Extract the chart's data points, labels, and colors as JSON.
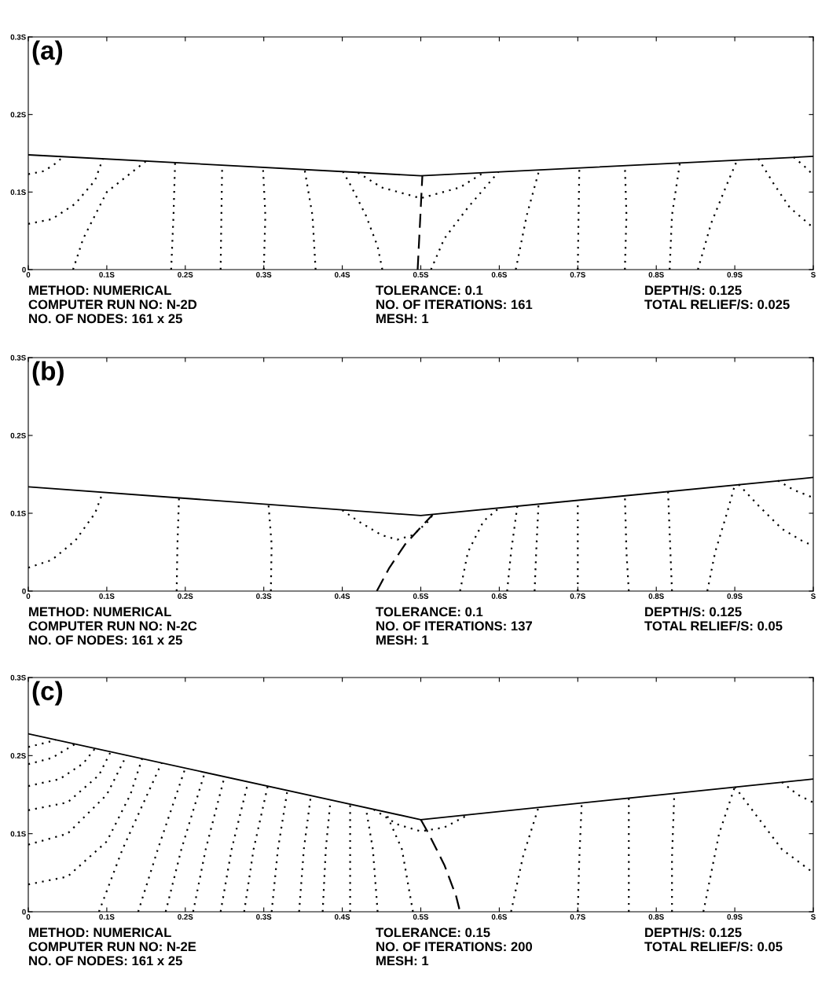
{
  "chart_data": [
    {
      "type": "line",
      "title": "(a)",
      "xlim": [
        0,
        1
      ],
      "ylim": [
        0,
        0.3
      ],
      "xticks": [
        0,
        {
          "value": 0.1,
          "label": "0.1S"
        },
        {
          "value": 0.2,
          "label": "0.2S"
        },
        {
          "value": 0.3,
          "label": "0.3S"
        },
        {
          "value": 0.4,
          "label": "0.4S"
        },
        {
          "value": 0.5,
          "label": "0.5S"
        },
        {
          "value": 0.6,
          "label": "0.6S"
        },
        {
          "value": 0.7,
          "label": "0.7S"
        },
        {
          "value": 0.8,
          "label": "0.8S"
        },
        {
          "value": 0.9,
          "label": "0.9S"
        },
        {
          "value": 1,
          "label": "S"
        }
      ],
      "yticks": [
        0,
        {
          "value": 0.1,
          "label": "0.1S"
        },
        {
          "value": 0.2,
          "label": "0.2S"
        },
        {
          "value": 0.3,
          "label": "0.3S"
        }
      ],
      "annotations": [
        "METHOD: NUMERICAL",
        "COMPUTER RUN NO: N-2D",
        "NO. OF NODES: 161 x 25",
        "TOLERANCE: 0.1",
        "NO. OF ITERATIONS: 161",
        "MESH: 1",
        "DEPTH/S: 0.125",
        "TOTAL RELIEF/S: 0.025"
      ],
      "series": [
        {
          "color": "#000000",
          "line_style": "solid",
          "x": [
            0,
            0.5,
            1
          ],
          "values": [
            0.148,
            0.121,
            0.146
          ]
        },
        {
          "color": "#000000",
          "line_style": "dashed",
          "x": [
            0.496,
            0.499,
            0.502
          ],
          "values": [
            0,
            0.06,
            0.121
          ]
        },
        {
          "color": "#000000",
          "line_style": "dotted",
          "x": [
            0,
            0.02,
            0.035,
            0.045
          ],
          "values": [
            0.123,
            0.127,
            0.137,
            0.146
          ]
        },
        {
          "color": "#000000",
          "line_style": "dotted",
          "x": [
            0,
            0.03,
            0.06,
            0.085,
            0.095
          ],
          "values": [
            0.059,
            0.065,
            0.085,
            0.115,
            0.143
          ]
        },
        {
          "color": "#000000",
          "line_style": "dotted",
          "x": [
            0.057,
            0.07,
            0.1,
            0.15
          ],
          "values": [
            0,
            0.04,
            0.1,
            0.14
          ]
        },
        {
          "color": "#000000",
          "line_style": "dotted",
          "x": [
            0.182,
            0.185,
            0.187
          ],
          "values": [
            0,
            0.07,
            0.138
          ]
        },
        {
          "color": "#000000",
          "line_style": "dotted",
          "x": [
            0.245,
            0.246,
            0.247
          ],
          "values": [
            0,
            0.07,
            0.134
          ]
        },
        {
          "color": "#000000",
          "line_style": "dotted",
          "x": [
            0.3,
            0.302,
            0.299
          ],
          "values": [
            0,
            0.07,
            0.131
          ]
        },
        {
          "color": "#000000",
          "line_style": "dotted",
          "x": [
            0.366,
            0.362,
            0.352
          ],
          "values": [
            0,
            0.07,
            0.129
          ]
        },
        {
          "color": "#000000",
          "line_style": "dotted",
          "x": [
            0.451,
            0.445,
            0.43,
            0.41,
            0.401
          ],
          "values": [
            0,
            0.03,
            0.07,
            0.11,
            0.126
          ]
        },
        {
          "color": "#000000",
          "line_style": "dotted",
          "x": [
            0.42,
            0.45,
            0.5,
            0.55,
            0.58
          ],
          "values": [
            0.125,
            0.106,
            0.092,
            0.106,
            0.125
          ]
        },
        {
          "color": "#000000",
          "line_style": "dotted",
          "x": [
            0.513,
            0.53,
            0.56,
            0.599
          ],
          "values": [
            0,
            0.04,
            0.08,
            0.126
          ]
        },
        {
          "color": "#000000",
          "line_style": "dotted",
          "x": [
            0.621,
            0.635,
            0.651
          ],
          "values": [
            0,
            0.07,
            0.129
          ]
        },
        {
          "color": "#000000",
          "line_style": "dotted",
          "x": [
            0.7,
            0.701,
            0.702
          ],
          "values": [
            0,
            0.07,
            0.131
          ]
        },
        {
          "color": "#000000",
          "line_style": "dotted",
          "x": [
            0.76,
            0.762,
            0.76
          ],
          "values": [
            0,
            0.07,
            0.134
          ]
        },
        {
          "color": "#000000",
          "line_style": "dotted",
          "x": [
            0.817,
            0.82,
            0.83
          ],
          "values": [
            0,
            0.07,
            0.137
          ]
        },
        {
          "color": "#000000",
          "line_style": "dotted",
          "x": [
            0.853,
            0.87,
            0.89,
            0.903
          ],
          "values": [
            0,
            0.06,
            0.11,
            0.141
          ]
        },
        {
          "color": "#000000",
          "line_style": "dotted",
          "x": [
            0.93,
            0.95,
            0.97,
            1.0
          ],
          "values": [
            0.143,
            0.11,
            0.08,
            0.054
          ]
        },
        {
          "color": "#000000",
          "line_style": "dotted",
          "x": [
            0.975,
            0.99,
            1.0
          ],
          "values": [
            0.145,
            0.132,
            0.122
          ]
        }
      ]
    },
    {
      "type": "line",
      "title": "(b)",
      "xlim": [
        0,
        1
      ],
      "ylim": [
        0,
        0.3
      ],
      "xticks": [
        0,
        {
          "value": 0.1,
          "label": "0.1S"
        },
        {
          "value": 0.2,
          "label": "0.2S"
        },
        {
          "value": 0.3,
          "label": "0.3S"
        },
        {
          "value": 0.4,
          "label": "0.4S"
        },
        {
          "value": 0.5,
          "label": "0.5S"
        },
        {
          "value": 0.6,
          "label": "0.6S"
        },
        {
          "value": 0.7,
          "label": "0.7S"
        },
        {
          "value": 0.8,
          "label": "0.8S"
        },
        {
          "value": 0.9,
          "label": "0.9S"
        },
        {
          "value": 1,
          "label": "S"
        }
      ],
      "yticks": [
        0,
        {
          "value": 0.1,
          "label": "0.1S"
        },
        {
          "value": 0.2,
          "label": "0.2S"
        },
        {
          "value": 0.3,
          "label": "0.3S"
        }
      ],
      "annotations": [
        "METHOD: NUMERICAL",
        "COMPUTER RUN NO: N-2C",
        "NO. OF NODES: 161 x 25",
        "TOLERANCE: 0.1",
        "NO. OF ITERATIONS: 137",
        "MESH: 1",
        "DEPTH/S: 0.125",
        "TOTAL RELIEF/S: 0.05"
      ],
      "series": [
        {
          "color": "#000000",
          "line_style": "solid",
          "x": [
            0,
            0.5,
            1
          ],
          "values": [
            0.134,
            0.097,
            0.146
          ]
        },
        {
          "color": "#000000",
          "line_style": "dashed",
          "x": [
            0.444,
            0.46,
            0.48,
            0.5,
            0.515
          ],
          "values": [
            0,
            0.03,
            0.06,
            0.082,
            0.098
          ]
        },
        {
          "color": "#000000",
          "line_style": "dotted",
          "x": [
            0,
            0.03,
            0.06,
            0.085,
            0.095
          ],
          "values": [
            0.03,
            0.04,
            0.065,
            0.1,
            0.127
          ]
        },
        {
          "color": "#000000",
          "line_style": "dotted",
          "x": [
            0.189,
            0.19,
            0.192
          ],
          "values": [
            0,
            0.06,
            0.12
          ]
        },
        {
          "color": "#000000",
          "line_style": "dotted",
          "x": [
            0.309,
            0.31,
            0.306
          ],
          "values": [
            0,
            0.06,
            0.111
          ]
        },
        {
          "color": "#000000",
          "line_style": "dotted",
          "x": [
            0.4,
            0.42,
            0.45,
            0.47,
            0.49,
            0.51,
            0.515
          ],
          "values": [
            0.104,
            0.09,
            0.072,
            0.066,
            0.072,
            0.09,
            0.098
          ]
        },
        {
          "color": "#000000",
          "line_style": "dotted",
          "x": [
            0.55,
            0.56,
            0.58,
            0.6
          ],
          "values": [
            0,
            0.05,
            0.09,
            0.107
          ]
        },
        {
          "color": "#000000",
          "line_style": "dotted",
          "x": [
            0.61,
            0.615,
            0.623
          ],
          "values": [
            0,
            0.05,
            0.109
          ]
        },
        {
          "color": "#000000",
          "line_style": "dotted",
          "x": [
            0.645,
            0.647,
            0.65
          ],
          "values": [
            0,
            0.05,
            0.112
          ]
        },
        {
          "color": "#000000",
          "line_style": "dotted",
          "x": [
            0.7,
            0.7,
            0.7
          ],
          "values": [
            0,
            0.05,
            0.117
          ]
        },
        {
          "color": "#000000",
          "line_style": "dotted",
          "x": [
            0.765,
            0.762,
            0.76
          ],
          "values": [
            0,
            0.05,
            0.122
          ]
        },
        {
          "color": "#000000",
          "line_style": "dotted",
          "x": [
            0.82,
            0.818,
            0.815
          ],
          "values": [
            0,
            0.05,
            0.128
          ]
        },
        {
          "color": "#000000",
          "line_style": "dotted",
          "x": [
            0.865,
            0.875,
            0.89,
            0.9
          ],
          "values": [
            0,
            0.05,
            0.1,
            0.136
          ]
        },
        {
          "color": "#000000",
          "line_style": "dotted",
          "x": [
            0.905,
            0.93,
            0.96,
            0.985,
            1.0
          ],
          "values": [
            0.137,
            0.11,
            0.08,
            0.065,
            0.058
          ]
        },
        {
          "color": "#000000",
          "line_style": "dotted",
          "x": [
            0.955,
            0.975,
            1.0
          ],
          "values": [
            0.142,
            0.13,
            0.12
          ]
        }
      ]
    },
    {
      "type": "line",
      "title": "(c)",
      "xlim": [
        0,
        1
      ],
      "ylim": [
        0,
        0.3
      ],
      "xticks": [
        0,
        {
          "value": 0.1,
          "label": "0.1S"
        },
        {
          "value": 0.2,
          "label": "0.2S"
        },
        {
          "value": 0.3,
          "label": "0.3S"
        },
        {
          "value": 0.4,
          "label": "0.4S"
        },
        {
          "value": 0.5,
          "label": "0.5S"
        },
        {
          "value": 0.6,
          "label": "0.6S"
        },
        {
          "value": 0.7,
          "label": "0.7S"
        },
        {
          "value": 0.8,
          "label": "0.8S"
        },
        {
          "value": 0.9,
          "label": "0.9S"
        },
        {
          "value": 1,
          "label": "S"
        }
      ],
      "yticks": [
        0,
        {
          "value": 0.1,
          "label": "0.1S"
        },
        {
          "value": 0.2,
          "label": "0.2S"
        },
        {
          "value": 0.3,
          "label": "0.3S"
        }
      ],
      "annotations": [
        "METHOD: NUMERICAL",
        "COMPUTER RUN NO: N-2E",
        "NO. OF NODES: 161 x 25",
        "TOLERANCE: 0.15",
        "NO. OF ITERATIONS: 200",
        "MESH: 1",
        "DEPTH/S: 0.125",
        "TOTAL RELIEF/S: 0.05"
      ],
      "series": [
        {
          "color": "#000000",
          "line_style": "solid",
          "x": [
            0,
            0.5,
            1
          ],
          "values": [
            0.228,
            0.118,
            0.17
          ]
        },
        {
          "color": "#000000",
          "line_style": "dashed",
          "x": [
            0.5,
            0.51,
            0.53,
            0.545,
            0.55
          ],
          "values": [
            0.118,
            0.1,
            0.06,
            0.02,
            0
          ]
        },
        {
          "color": "#000000",
          "line_style": "dotted",
          "x": [
            0,
            0.02,
            0.035
          ],
          "values": [
            0.211,
            0.216,
            0.22
          ]
        },
        {
          "color": "#000000",
          "line_style": "dotted",
          "x": [
            0,
            0.03,
            0.06
          ],
          "values": [
            0.189,
            0.197,
            0.215
          ]
        },
        {
          "color": "#000000",
          "line_style": "dotted",
          "x": [
            0,
            0.04,
            0.07,
            0.085
          ],
          "values": [
            0.161,
            0.17,
            0.19,
            0.209
          ]
        },
        {
          "color": "#000000",
          "line_style": "dotted",
          "x": [
            0,
            0.05,
            0.09,
            0.105
          ],
          "values": [
            0.13,
            0.14,
            0.175,
            0.205
          ]
        },
        {
          "color": "#000000",
          "line_style": "dotted",
          "x": [
            0,
            0.05,
            0.1,
            0.125
          ],
          "values": [
            0.086,
            0.1,
            0.15,
            0.2
          ]
        },
        {
          "color": "#000000",
          "line_style": "dotted",
          "x": [
            0,
            0.05,
            0.1,
            0.13,
            0.145
          ],
          "values": [
            0.035,
            0.045,
            0.09,
            0.15,
            0.196
          ]
        },
        {
          "color": "#000000",
          "line_style": "dotted",
          "x": [
            0.09,
            0.12,
            0.17
          ],
          "values": [
            0,
            0.08,
            0.191
          ]
        },
        {
          "color": "#000000",
          "line_style": "dotted",
          "x": [
            0.14,
            0.165,
            0.2
          ],
          "values": [
            0,
            0.08,
            0.184
          ]
        },
        {
          "color": "#000000",
          "line_style": "dotted",
          "x": [
            0.175,
            0.195,
            0.225
          ],
          "values": [
            0,
            0.08,
            0.179
          ]
        },
        {
          "color": "#000000",
          "line_style": "dotted",
          "x": [
            0.21,
            0.226,
            0.25
          ],
          "values": [
            0,
            0.08,
            0.173
          ]
        },
        {
          "color": "#000000",
          "line_style": "dotted",
          "x": [
            0.245,
            0.259,
            0.28
          ],
          "values": [
            0,
            0.08,
            0.166
          ]
        },
        {
          "color": "#000000",
          "line_style": "dotted",
          "x": [
            0.275,
            0.287,
            0.305
          ],
          "values": [
            0,
            0.08,
            0.161
          ]
        },
        {
          "color": "#000000",
          "line_style": "dotted",
          "x": [
            0.31,
            0.318,
            0.33
          ],
          "values": [
            0,
            0.08,
            0.155
          ]
        },
        {
          "color": "#000000",
          "line_style": "dotted",
          "x": [
            0.345,
            0.351,
            0.36
          ],
          "values": [
            0,
            0.08,
            0.149
          ]
        },
        {
          "color": "#000000",
          "line_style": "dotted",
          "x": [
            0.375,
            0.379,
            0.385
          ],
          "values": [
            0,
            0.08,
            0.143
          ]
        },
        {
          "color": "#000000",
          "line_style": "dotted",
          "x": [
            0.41,
            0.41,
            0.41
          ],
          "values": [
            0,
            0.08,
            0.138
          ]
        },
        {
          "color": "#000000",
          "line_style": "dotted",
          "x": [
            0.445,
            0.439,
            0.43
          ],
          "values": [
            0,
            0.08,
            0.133
          ]
        },
        {
          "color": "#000000",
          "line_style": "dotted",
          "x": [
            0.49,
            0.476,
            0.455
          ],
          "values": [
            0,
            0.08,
            0.128
          ]
        },
        {
          "color": "#000000",
          "line_style": "dotted",
          "x": [
            0.44,
            0.47,
            0.5,
            0.53,
            0.56
          ],
          "values": [
            0.131,
            0.112,
            0.103,
            0.108,
            0.124
          ]
        },
        {
          "color": "#000000",
          "line_style": "dotted",
          "x": [
            0.615,
            0.63,
            0.65
          ],
          "values": [
            0,
            0.07,
            0.134
          ]
        },
        {
          "color": "#000000",
          "line_style": "dotted",
          "x": [
            0.7,
            0.702,
            0.705
          ],
          "values": [
            0,
            0.07,
            0.139
          ]
        },
        {
          "color": "#000000",
          "line_style": "dotted",
          "x": [
            0.765,
            0.765,
            0.765
          ],
          "values": [
            0,
            0.07,
            0.146
          ]
        },
        {
          "color": "#000000",
          "line_style": "dotted",
          "x": [
            0.82,
            0.82,
            0.823
          ],
          "values": [
            0,
            0.07,
            0.152
          ]
        },
        {
          "color": "#000000",
          "line_style": "dotted",
          "x": [
            0.86,
            0.88,
            0.9
          ],
          "values": [
            0,
            0.1,
            0.16
          ]
        },
        {
          "color": "#000000",
          "line_style": "dotted",
          "x": [
            0.9,
            0.93,
            0.96,
            1.0
          ],
          "values": [
            0.16,
            0.12,
            0.08,
            0.05
          ]
        },
        {
          "color": "#000000",
          "line_style": "dotted",
          "x": [
            0.96,
            0.98,
            1.0
          ],
          "values": [
            0.166,
            0.15,
            0.14
          ]
        }
      ]
    }
  ]
}
